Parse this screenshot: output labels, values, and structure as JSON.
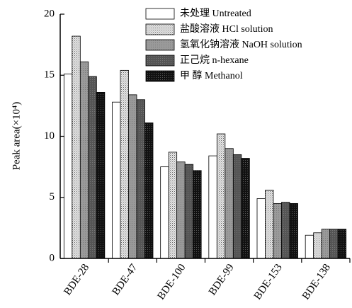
{
  "chart_data": {
    "type": "bar",
    "ylabel": "Peak area(×10⁴)",
    "ylim": [
      0,
      20
    ],
    "yticks": [
      "0",
      "5",
      "10",
      "15",
      "20"
    ],
    "categories": [
      "BDE-28",
      "BDE-47",
      "BDE-100",
      "BDE-99",
      "BDE-153",
      "BDE-138"
    ],
    "series": [
      {
        "name": "未处理 Untreated",
        "fill": "white",
        "values": [
          15.1,
          12.8,
          7.5,
          8.4,
          4.9,
          1.9
        ]
      },
      {
        "name": "盐酸溶液 HCl solution",
        "fill": "dots",
        "values": [
          18.2,
          15.4,
          8.7,
          10.2,
          5.6,
          2.1
        ]
      },
      {
        "name": "氢氧化钠溶液 NaOH solution",
        "fill": "gray",
        "values": [
          16.1,
          13.4,
          7.9,
          9.0,
          4.5,
          2.4
        ]
      },
      {
        "name": "正己烷 n-hexane",
        "fill": "darkgray",
        "values": [
          14.9,
          13.0,
          7.7,
          8.5,
          4.6,
          2.4
        ]
      },
      {
        "name": "甲 醇 Methanol",
        "fill": "black",
        "values": [
          13.6,
          11.1,
          7.2,
          8.2,
          4.5,
          2.4
        ]
      }
    ],
    "legend_position": "top-right",
    "grid": false
  }
}
